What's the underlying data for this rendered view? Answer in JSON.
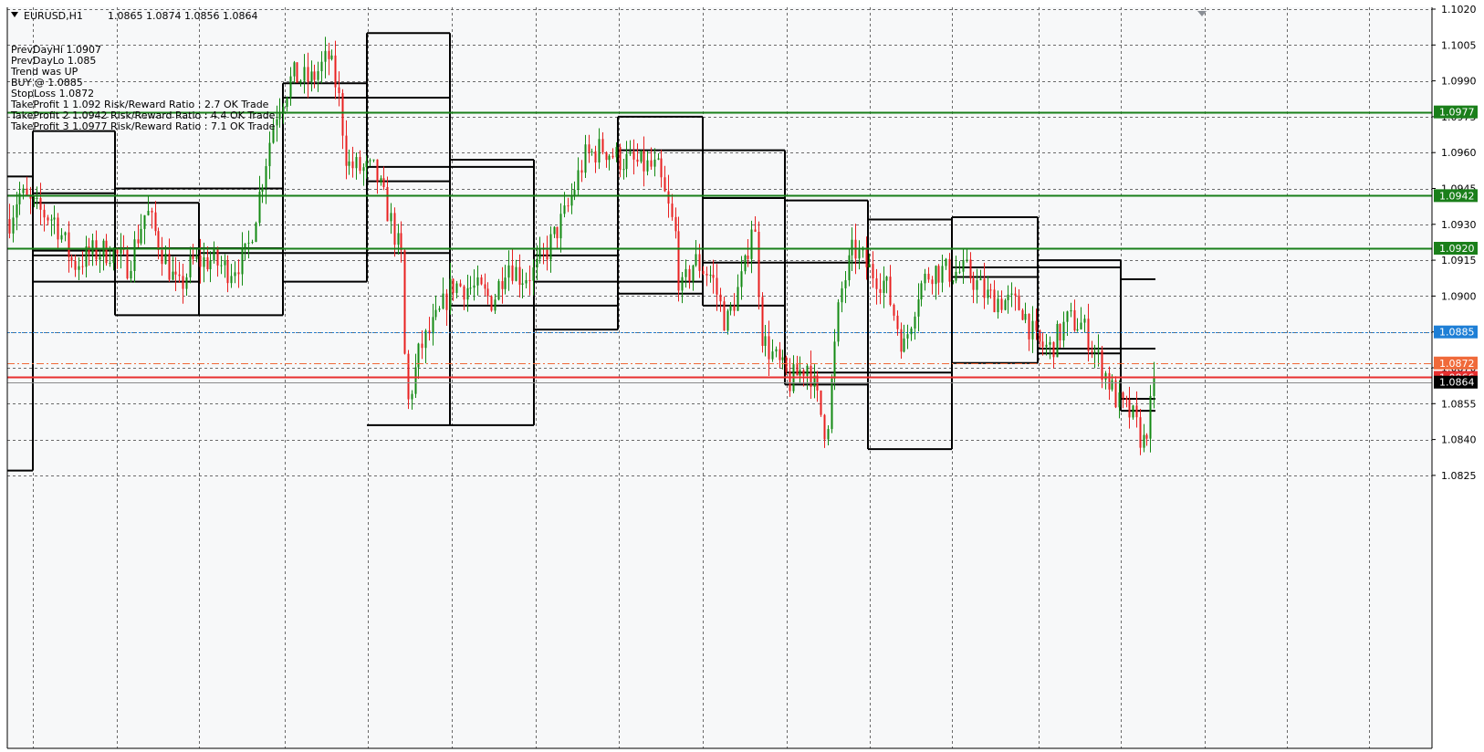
{
  "window": {
    "symbol_tf": "EURUSD,H1",
    "ohlc": "1.0865 1.0874 1.0856 1.0864"
  },
  "info_panel": [
    "PrevDayHi 1.0907",
    "PrevDayLo 1.085",
    "Trend was UP",
    "BUY @ 1.0885",
    "StopLoss 1.0872",
    "TakeProfit 1 1.092 Risk/Reward Ratio : 2.7 OK Trade",
    "TakeProfit 2 1.0942 Risk/Reward Ratio : 4.4 OK Trade",
    "TakeProfit 3 1.0977 Risk/Reward Ratio : 7.1 OK Trade"
  ],
  "price_axis": {
    "ticks": [
      "1.1020",
      "1.1005",
      "1.0990",
      "1.0975",
      "1.0960",
      "1.0945",
      "1.0930",
      "1.0915",
      "1.0900",
      "1.0885",
      "1.0870",
      "1.0855",
      "1.0840",
      "1.0825"
    ]
  },
  "levels": [
    {
      "name": "take-profit-3",
      "price": "1.0977",
      "color": "#1a7f1a",
      "style": "solid"
    },
    {
      "name": "take-profit-2",
      "price": "1.0942",
      "color": "#1a7f1a",
      "style": "solid"
    },
    {
      "name": "take-profit-1",
      "price": "1.0920",
      "color": "#1a7f1a",
      "style": "solid"
    },
    {
      "name": "buy-entry",
      "price": "1.0885",
      "color": "#1e7fd6",
      "style": "dotted"
    },
    {
      "name": "stop-loss",
      "price": "1.0872",
      "color": "#f06a3a",
      "style": "dashdot"
    },
    {
      "name": "bid",
      "price": "1.0866",
      "color": "#e83030",
      "style": "solid"
    },
    {
      "name": "current-price",
      "price": "1.0864",
      "color": "#000000",
      "style": "solid"
    }
  ],
  "colors": {
    "bull": "#138a13",
    "bear": "#e82020",
    "grid": "#6a6a6a",
    "box_line": "#000000",
    "background": "#f7f8f9"
  }
}
